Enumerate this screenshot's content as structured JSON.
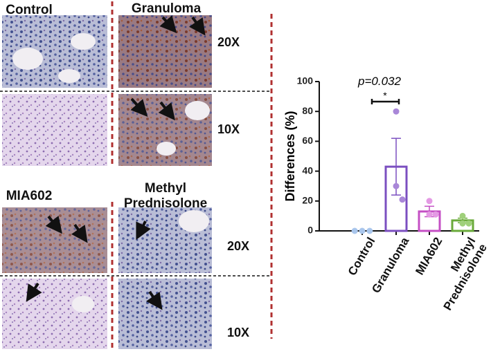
{
  "panels": {
    "control": "Control",
    "granuloma": "Granuloma",
    "mia602": "MIA602",
    "methyl": "Methyl Prednisolone",
    "magnifications": [
      "20X",
      "10X",
      "20X",
      "10X"
    ]
  },
  "chart_data": {
    "type": "bar",
    "y_label": "Differences (%)",
    "annotation": "p=0.032",
    "significance": "*",
    "categories": [
      "Control",
      "Granuloma",
      "MIA602",
      "Methyl Prednisolone"
    ],
    "values": [
      0,
      43,
      13,
      7
    ],
    "errors": [
      0,
      19,
      3.5,
      1.5
    ],
    "points": [
      [
        0,
        0,
        0
      ],
      [
        80,
        30,
        21
      ],
      [
        20,
        11,
        11
      ],
      [
        10,
        5,
        5
      ]
    ],
    "colors": [
      "#8fb4e0",
      "#7b4fc0",
      "#c44fc4",
      "#6aaa3a"
    ],
    "point_colors": [
      "#a9c6ec",
      "#a987d8",
      "#e49ae4",
      "#9fd07a"
    ],
    "ylim": [
      0,
      100
    ],
    "yticks": [
      0,
      20,
      40,
      60,
      80,
      100
    ]
  }
}
